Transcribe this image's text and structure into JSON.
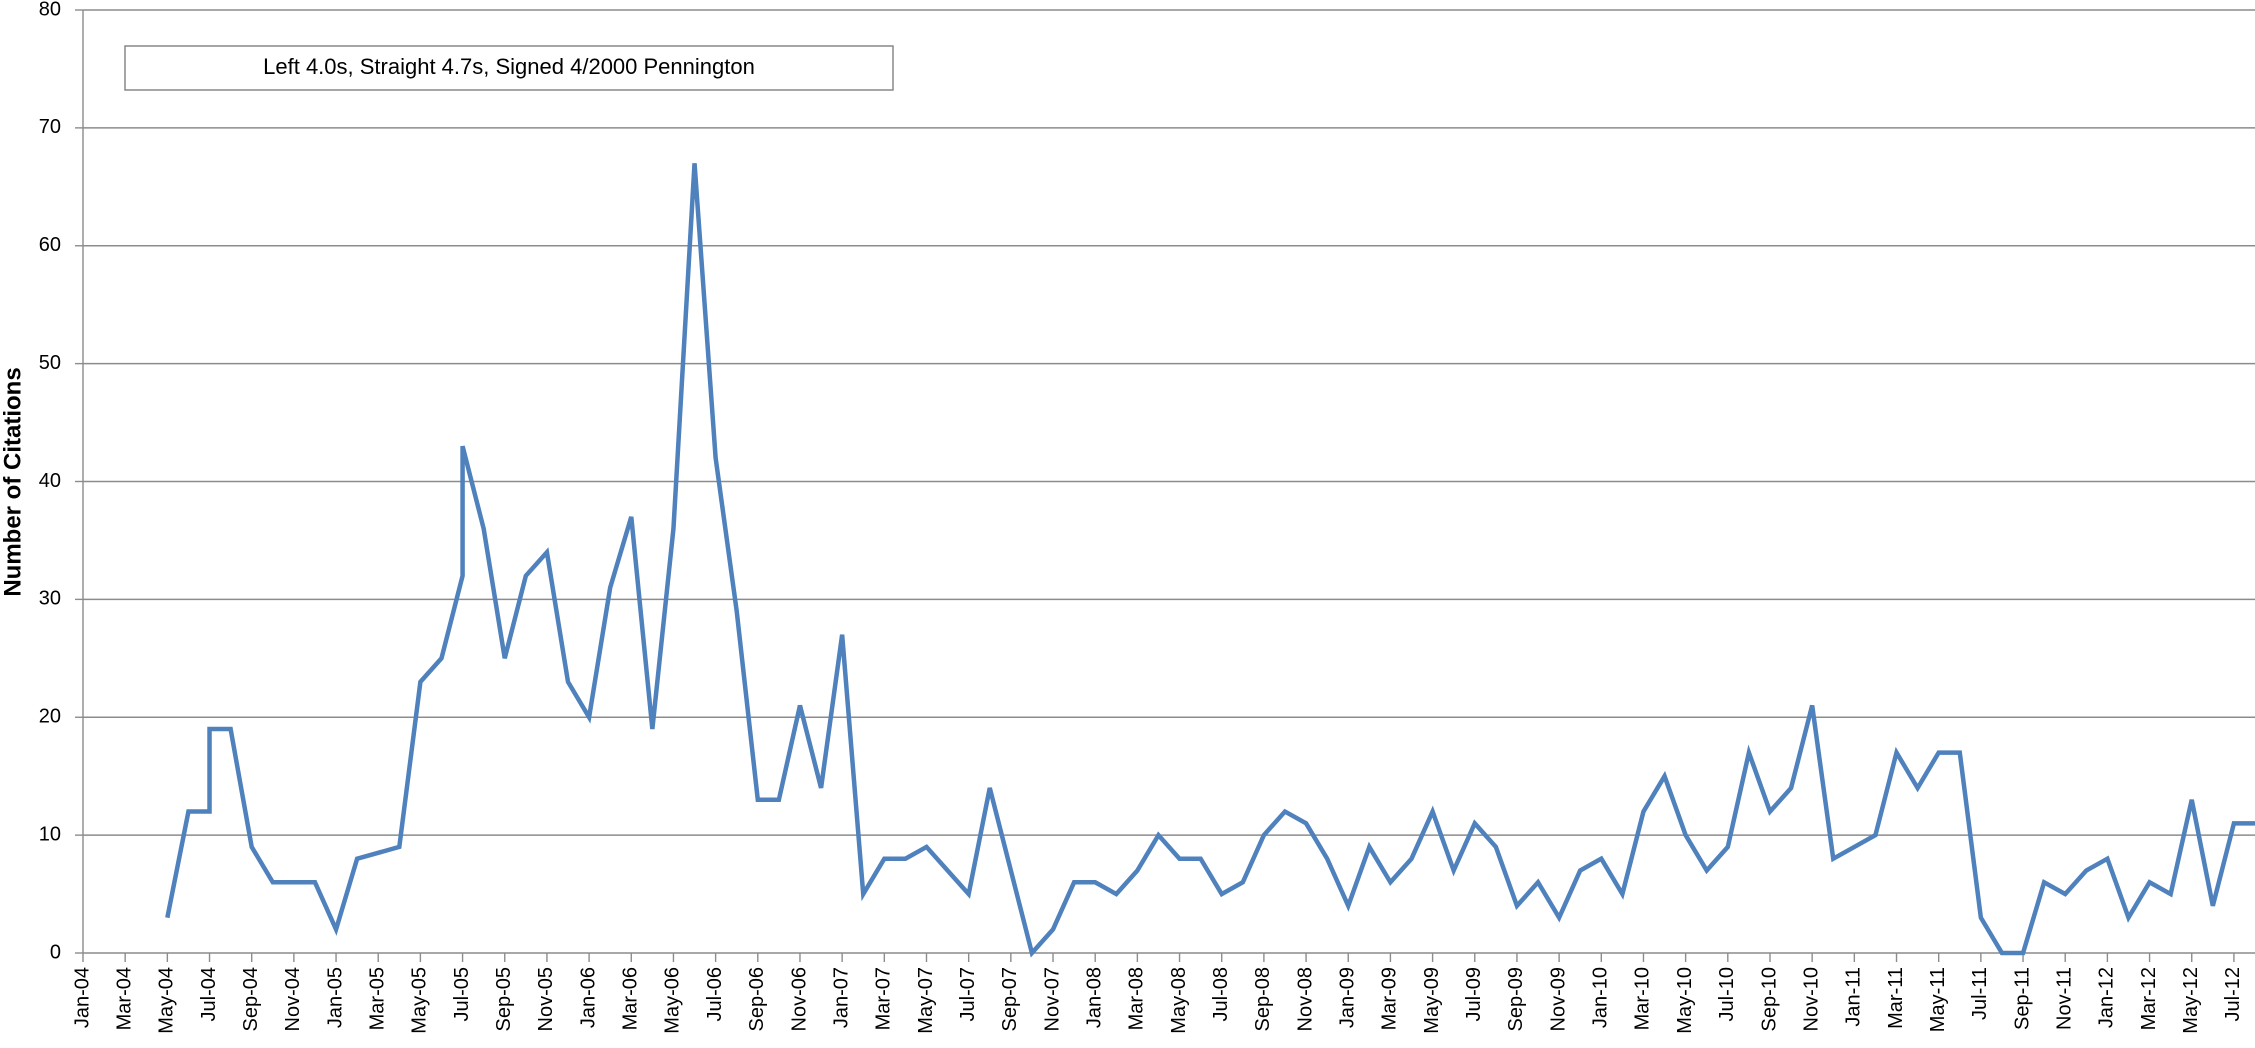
{
  "chart_data": {
    "type": "line",
    "y_label": "Number of Citations",
    "annotation": "Left 4.0s, Straight 4.7s, Signed 4/2000 Pennington",
    "x": [
      "May-04",
      "Jun-04",
      "Jul-04",
      "Jul-04",
      "Aug-04",
      "Sep-04",
      "Oct-04",
      "Nov-04",
      "Dec-04",
      "Jan-05",
      "Feb-05",
      "Mar-05",
      "Apr-05",
      "May-05",
      "Jun-05",
      "Jul-05",
      "Jul-05",
      "Aug-05",
      "Sep-05",
      "Oct-05",
      "Nov-05",
      "Dec-05",
      "Jan-06",
      "Feb-06",
      "Mar-06",
      "Apr-06",
      "May-06",
      "Jun-06",
      "Jul-06",
      "Aug-06",
      "Sep-06",
      "Oct-06",
      "Nov-06",
      "Dec-06",
      "Jan-07",
      "Feb-07",
      "Mar-07",
      "Apr-07",
      "May-07",
      "Jun-07",
      "Jul-07",
      "Aug-07",
      "Sep-07",
      "Oct-07",
      "Nov-07",
      "Dec-07",
      "Jan-08",
      "Feb-08",
      "Mar-08",
      "Apr-08",
      "May-08",
      "Jun-08",
      "Jul-08",
      "Aug-08",
      "Sep-08",
      "Oct-08",
      "Nov-08",
      "Dec-08",
      "Jan-09",
      "Feb-09",
      "Mar-09",
      "Apr-09",
      "May-09",
      "Jun-09",
      "Jul-09",
      "Aug-09",
      "Sep-09",
      "Oct-09",
      "Nov-09",
      "Dec-09",
      "Jan-10",
      "Feb-10",
      "Mar-10",
      "Apr-10",
      "May-10",
      "Jun-10",
      "Jul-10",
      "Aug-10",
      "Sep-10",
      "Oct-10",
      "Nov-10",
      "Dec-10",
      "Jan-11",
      "Feb-11",
      "Mar-11",
      "Apr-11",
      "May-11",
      "Jun-11",
      "Jul-11",
      "Aug-11",
      "Sep-11",
      "Oct-11",
      "Nov-11",
      "Dec-11",
      "Jan-12",
      "Feb-12",
      "Mar-12",
      "Apr-12",
      "May-12",
      "Jun-12",
      "Jul-12",
      "Aug-12"
    ],
    "series": [
      {
        "name": "Citations",
        "color": "#4f81bd",
        "values": [
          3,
          12,
          12,
          19,
          19,
          9,
          6,
          6,
          6,
          2,
          8,
          8.5,
          9,
          23,
          25,
          32,
          43,
          36,
          25,
          32,
          34,
          23,
          20,
          31,
          37,
          19,
          36,
          67,
          42,
          29,
          13,
          13,
          21,
          14,
          27,
          5,
          8,
          8,
          9,
          7,
          5,
          14,
          7,
          0,
          2,
          6,
          6,
          5,
          7,
          10,
          8,
          8,
          5,
          6,
          10,
          12,
          11,
          8,
          4,
          9,
          6,
          8,
          12,
          7,
          11,
          9,
          4,
          6,
          3,
          7,
          8,
          5,
          12,
          15,
          10,
          7,
          9,
          17,
          12,
          14,
          21,
          8,
          9,
          10,
          17,
          14,
          17,
          17,
          3,
          0,
          0,
          6,
          5,
          7,
          8,
          3,
          6,
          5,
          13,
          4,
          11,
          11
        ]
      }
    ],
    "xlim": [
      "Jan-04",
      "Aug-12"
    ],
    "xticks": [
      "Jan-04",
      "Mar-04",
      "May-04",
      "Jul-04",
      "Sep-04",
      "Nov-04",
      "Jan-05",
      "Mar-05",
      "May-05",
      "Jul-05",
      "Sep-05",
      "Nov-05",
      "Jan-06",
      "Mar-06",
      "May-06",
      "Jul-06",
      "Sep-06",
      "Nov-06",
      "Jan-07",
      "Mar-07",
      "May-07",
      "Jul-07",
      "Sep-07",
      "Nov-07",
      "Jan-08",
      "Mar-08",
      "May-08",
      "Jul-08",
      "Sep-08",
      "Nov-08",
      "Jan-09",
      "Mar-09",
      "May-09",
      "Jul-09",
      "Sep-09",
      "Nov-09",
      "Jan-10",
      "Mar-10",
      "May-10",
      "Jul-10",
      "Sep-10",
      "Nov-10",
      "Jan-11",
      "Mar-11",
      "May-11",
      "Jul-11",
      "Sep-11",
      "Nov-11",
      "Jan-12",
      "Mar-12",
      "May-12",
      "Jul-12"
    ],
    "ylim": [
      0,
      80
    ],
    "yticks": [
      0,
      10,
      20,
      30,
      40,
      50,
      60,
      70,
      80
    ],
    "grid": true
  }
}
